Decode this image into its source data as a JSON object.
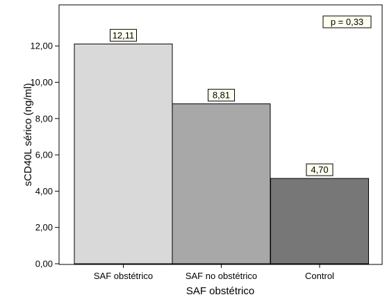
{
  "chart_data": {
    "type": "bar",
    "categories": [
      "SAF obstétrico",
      "SAF no obstétrico",
      "Control"
    ],
    "values": [
      12.11,
      8.81,
      4.7
    ],
    "data_labels": [
      "12,11",
      "8,81",
      "4,70"
    ],
    "bar_colors": [
      "#d9d9d9",
      "#a8a8a8",
      "#777777"
    ],
    "xlabel": "SAF obstétrico",
    "ylabel": "sCD40L sérico (ng/ml)",
    "ylim": [
      0,
      14
    ],
    "yticks": [
      0,
      2,
      4,
      6,
      8,
      10,
      12
    ],
    "ytick_labels": [
      "0,00",
      "2,00",
      "4,00",
      "6,00",
      "8,00",
      "10,00",
      "12,00"
    ],
    "annotation": "p = 0,33",
    "annotation_position": "top-right",
    "grid": false
  }
}
